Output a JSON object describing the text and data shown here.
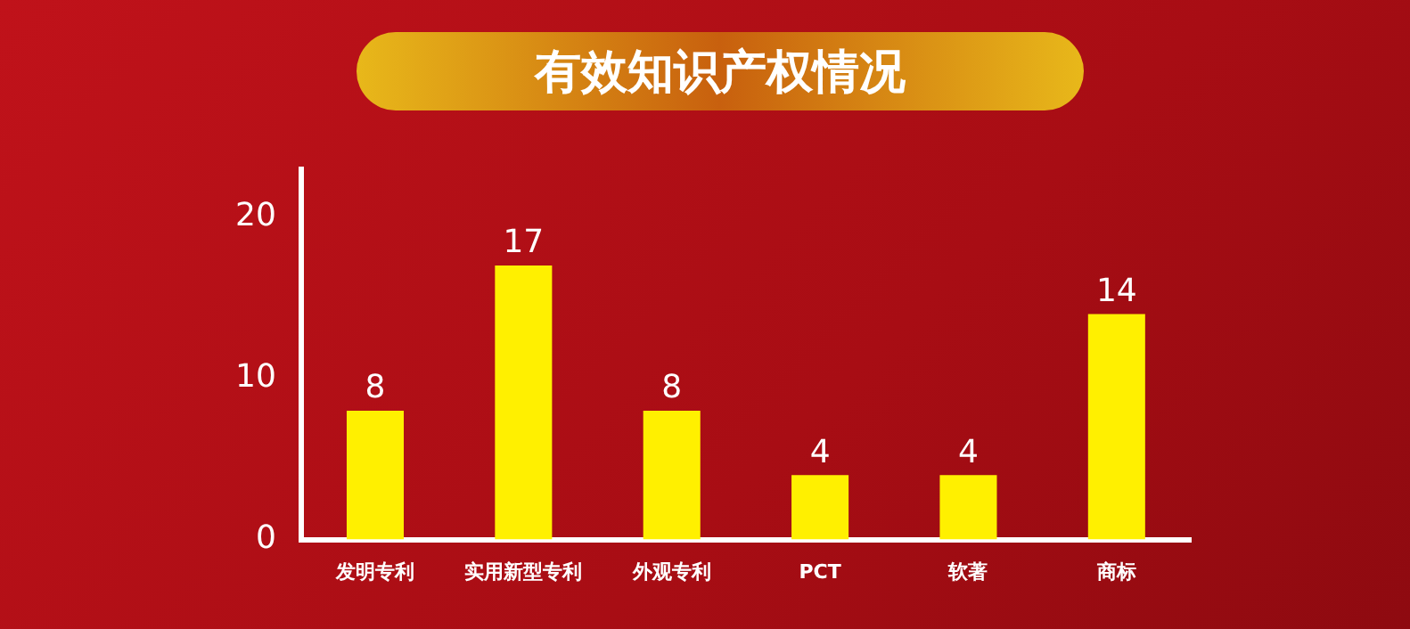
{
  "chart_data": {
    "type": "bar",
    "title": "有效知识产权情况",
    "categories": [
      "发明专利",
      "实用新型专利",
      "外观专利",
      "PCT",
      "软著",
      "商标"
    ],
    "values": [
      8,
      17,
      8,
      4,
      4,
      14
    ],
    "color": "#fff000",
    "ylim": [
      0,
      23
    ],
    "yticks": [
      0,
      10,
      20
    ],
    "grid": false,
    "legend": false,
    "data_labels": true
  }
}
